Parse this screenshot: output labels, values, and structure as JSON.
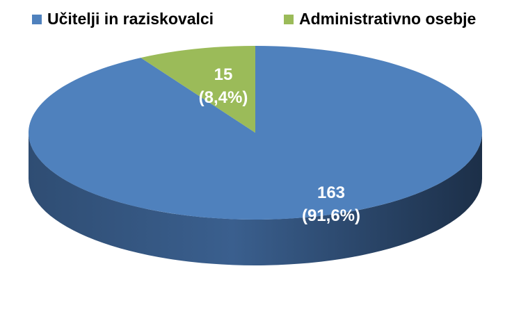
{
  "chart_data": {
    "type": "pie",
    "style": "3d",
    "categories": [
      "Učitelji in raziskovalci",
      "Administrativno osebje"
    ],
    "values": [
      163,
      15
    ],
    "percent_labels": [
      "(91,6%)",
      "(8,4%)"
    ],
    "value_labels": [
      "163",
      "15"
    ],
    "colors": [
      "#4f81bd",
      "#9bbb59"
    ],
    "legend_position": "top",
    "title": ""
  }
}
